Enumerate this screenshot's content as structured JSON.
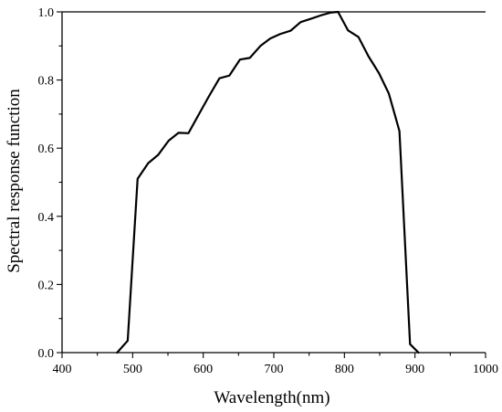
{
  "chart_data": {
    "type": "line",
    "title": "",
    "xlabel": "Wavelength(nm)",
    "ylabel": "Spectral response function",
    "xlim": [
      400,
      1000
    ],
    "ylim": [
      0,
      1.0
    ],
    "xticks": [
      400,
      500,
      600,
      700,
      800,
      900,
      1000
    ],
    "yticks": [
      0.0,
      0.2,
      0.4,
      0.6,
      0.8,
      1.0
    ],
    "xtick_labels": [
      "400",
      "500",
      "600",
      "700",
      "800",
      "900",
      "1000"
    ],
    "ytick_labels": [
      "0.0",
      "0.2",
      "0.4",
      "0.6",
      "0.8",
      "1.0"
    ],
    "grid": false,
    "legend": "none",
    "line_color": "#000000",
    "series": [
      {
        "x": [
          478,
          493,
          507,
          522,
          536,
          551,
          565,
          579,
          594,
          608,
          623,
          637,
          652,
          666,
          681,
          695,
          709,
          724,
          738,
          753,
          767,
          781,
          791,
          805,
          820,
          834,
          849,
          863,
          878,
          893,
          905
        ],
        "y": [
          0.0,
          0.035,
          0.51,
          0.556,
          0.58,
          0.622,
          0.645,
          0.644,
          0.7,
          0.752,
          0.805,
          0.813,
          0.86,
          0.865,
          0.9,
          0.922,
          0.935,
          0.945,
          0.97,
          0.98,
          0.99,
          0.998,
          1.0,
          0.946,
          0.926,
          0.87,
          0.82,
          0.76,
          0.65,
          0.025,
          0.0
        ]
      }
    ]
  }
}
